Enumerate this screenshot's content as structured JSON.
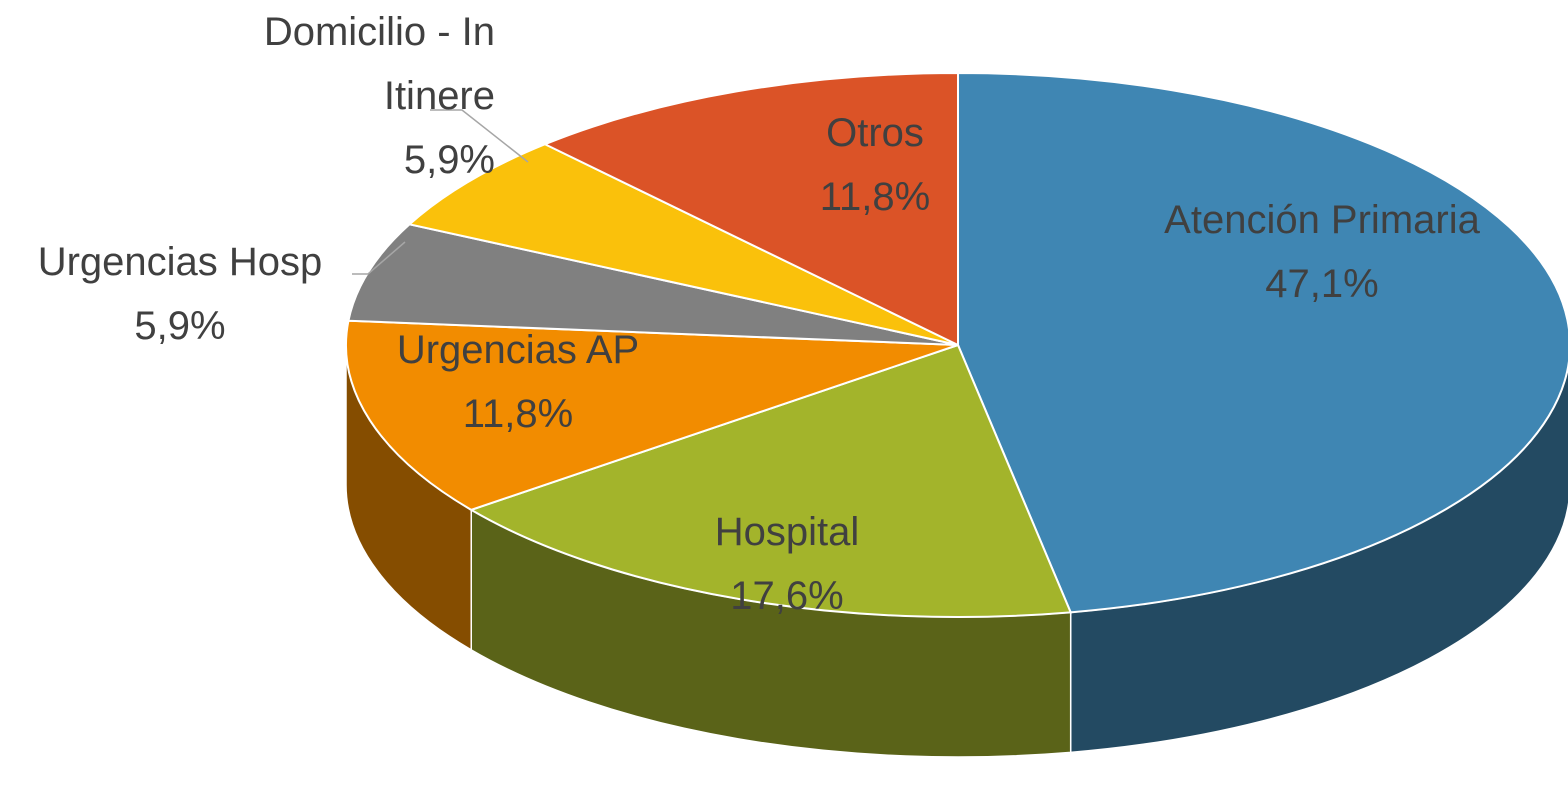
{
  "chart_data": {
    "type": "pie",
    "categories": [
      "Atención Primaria",
      "Hospital",
      "Urgencias AP",
      "Urgencias Hosp",
      "Domicilio - In Itinere",
      "Otros"
    ],
    "values": [
      47.1,
      17.6,
      11.8,
      5.9,
      5.9,
      11.8
    ],
    "value_labels": [
      "47,1%",
      "17,6%",
      "11,8%",
      "5,9%",
      "5,9%",
      "11,8%"
    ],
    "colors": [
      "#3f86b3",
      "#a3b42b",
      "#f28c00",
      "#808080",
      "#fac10b",
      "#db5327"
    ]
  }
}
